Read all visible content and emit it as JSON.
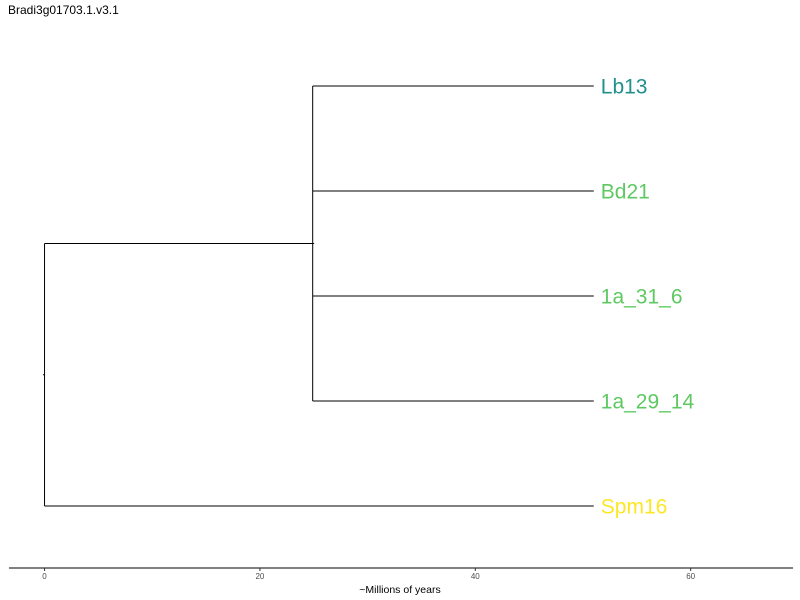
{
  "title": "Bradi3g01703.1.v3.1",
  "xaxis": {
    "label": "~Millions of years",
    "ticks": [
      "0",
      "20",
      "40",
      "60"
    ],
    "tick_values": [
      0,
      20,
      40,
      60
    ],
    "range": [
      -3.3,
      69.5
    ]
  },
  "tree": {
    "root_age": 0,
    "clade_age": 24.9,
    "tip_age": 51.0,
    "leaves": [
      {
        "name": "Lb13",
        "color": "#21908c",
        "clade": "inner"
      },
      {
        "name": "Bd21",
        "color": "#5ec962",
        "clade": "inner"
      },
      {
        "name": "1a_31_6",
        "color": "#5ec962",
        "clade": "inner"
      },
      {
        "name": "1a_29_14",
        "color": "#5ec962",
        "clade": "inner"
      },
      {
        "name": "Spm16",
        "color": "#fde725",
        "clade": "outer"
      }
    ]
  }
}
